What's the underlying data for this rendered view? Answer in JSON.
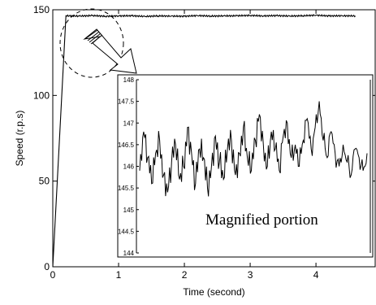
{
  "chart_data": {
    "type": "line",
    "xlabel": "Time (second)",
    "ylabel": "Speed (r.p.s)",
    "xlim": [
      0,
      4.9
    ],
    "ylim": [
      0,
      150
    ],
    "x_ticks": [
      "0",
      "1",
      "2",
      "3",
      "4"
    ],
    "y_ticks": [
      "0",
      "50",
      "100",
      "150"
    ],
    "series": [
      {
        "x": [
          0,
          0.2,
          0.4,
          0.6,
          0.8,
          1.0,
          1.2,
          1.4,
          1.6,
          1.8,
          2.0,
          2.2,
          2.4,
          2.6,
          2.8,
          3.0,
          3.2,
          3.4,
          3.6,
          3.8,
          4.0,
          4.2,
          4.4,
          4.6
        ],
        "values": [
          0,
          146.5,
          146.3,
          146.6,
          146.2,
          146.4,
          146.5,
          146.1,
          146.4,
          146.3,
          146.2,
          146.6,
          146.3,
          146.4,
          146.5,
          146.7,
          146.4,
          146.6,
          146.3,
          146.5,
          146.8,
          146.4,
          146.5,
          146.4
        ]
      }
    ],
    "inset": {
      "type": "line",
      "annotation": "Magnified portion",
      "ylim": [
        144,
        148
      ],
      "y_ticks": [
        "148",
        "147.5",
        "147",
        "146.5",
        "146",
        "145.5",
        "145",
        "144.5",
        "144"
      ],
      "series": [
        {
          "values": [
            145.9,
            146.8,
            146.2,
            145.6,
            146.3,
            146.6,
            145.8,
            145.4,
            146.1,
            146.5,
            145.7,
            146.0,
            146.9,
            146.3,
            145.6,
            146.4,
            146.2,
            145.5,
            146.0,
            146.7,
            146.1,
            145.7,
            146.4,
            146.6,
            145.8,
            146.3,
            146.9,
            146.2,
            145.9,
            146.6,
            147.2,
            146.5,
            146.0,
            146.8,
            146.4,
            145.9,
            146.7,
            147.0,
            146.2,
            146.5,
            146.0,
            146.6,
            147.1,
            146.4,
            146.9,
            147.5,
            146.6,
            146.2,
            146.8,
            146.3,
            146.0,
            146.5,
            146.1,
            145.8,
            146.4,
            146.2,
            145.9,
            146.3
          ]
        }
      ]
    }
  }
}
